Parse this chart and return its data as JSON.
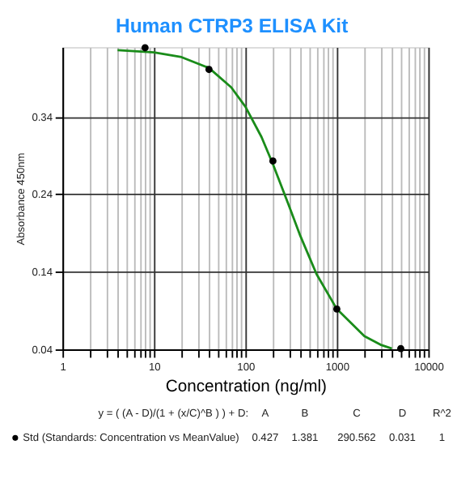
{
  "chart_data": {
    "type": "line",
    "title": "Human CTRP3 ELISA Kit",
    "xlabel": "Concentration (ng/ml)",
    "ylabel": "Absorbance 450nm",
    "log": "x",
    "grid": true,
    "legend": "bottom",
    "xlim": [
      1,
      10000
    ],
    "ylim": [
      0.04,
      0.43
    ],
    "xticks": [
      1,
      {
        "value": 2,
        "label": null
      },
      {
        "value": 3,
        "label": null
      },
      {
        "value": 4,
        "label": null
      },
      {
        "value": 5,
        "label": null
      },
      {
        "value": 6,
        "label": null
      },
      {
        "value": 7,
        "label": null
      },
      {
        "value": 8,
        "label": null
      },
      {
        "value": 9,
        "label": null
      },
      10,
      {
        "value": 20,
        "label": null
      },
      {
        "value": 30,
        "label": null
      },
      {
        "value": 40,
        "label": null
      },
      {
        "value": 50,
        "label": null
      },
      {
        "value": 60,
        "label": null
      },
      {
        "value": 70,
        "label": null
      },
      {
        "value": 80,
        "label": null
      },
      {
        "value": 90,
        "label": null
      },
      100,
      {
        "value": 200,
        "label": null
      },
      {
        "value": 300,
        "label": null
      },
      {
        "value": 400,
        "label": null
      },
      {
        "value": 500,
        "label": null
      },
      {
        "value": 600,
        "label": null
      },
      {
        "value": 700,
        "label": null
      },
      {
        "value": 800,
        "label": null
      },
      {
        "value": 900,
        "label": null
      },
      1000,
      {
        "value": 2000,
        "label": null
      },
      {
        "value": 3000,
        "label": null
      },
      {
        "value": 4000,
        "label": null
      },
      {
        "value": 5000,
        "label": null
      },
      {
        "value": 6000,
        "label": null
      },
      {
        "value": 7000,
        "label": null
      },
      {
        "value": 8000,
        "label": null
      },
      {
        "value": 9000,
        "label": null
      },
      10000
    ],
    "yticks": [
      0.04,
      0.14,
      0.24,
      0.34
    ],
    "series": [
      {
        "color": "#1a8c1a",
        "x": [
          4,
          10,
          20,
          40,
          70,
          100,
          150,
          200,
          300,
          400,
          600,
          1000,
          2000,
          3000,
          4000
        ],
        "values": [
          0.426,
          0.423,
          0.417,
          0.403,
          0.378,
          0.353,
          0.314,
          0.279,
          0.225,
          0.186,
          0.137,
          0.092,
          0.057,
          0.046,
          0.041
        ]
      },
      {
        "type": "scatter",
        "name": "Std (Standards: Concentration vs MeanValue)",
        "color": "#000000",
        "marker": "circle",
        "x": [
          8,
          40,
          200,
          1000,
          5000
        ],
        "values": [
          0.429,
          0.401,
          0.283,
          0.092,
          0.041
        ]
      }
    ],
    "annotations": [
      "y = ( (A - D)/(1 + (x/C)^B ) ) + D:",
      "A",
      "B",
      "C",
      "D",
      "R^2",
      "0.427",
      "1.381",
      "290.562",
      "0.031",
      "1"
    ]
  }
}
